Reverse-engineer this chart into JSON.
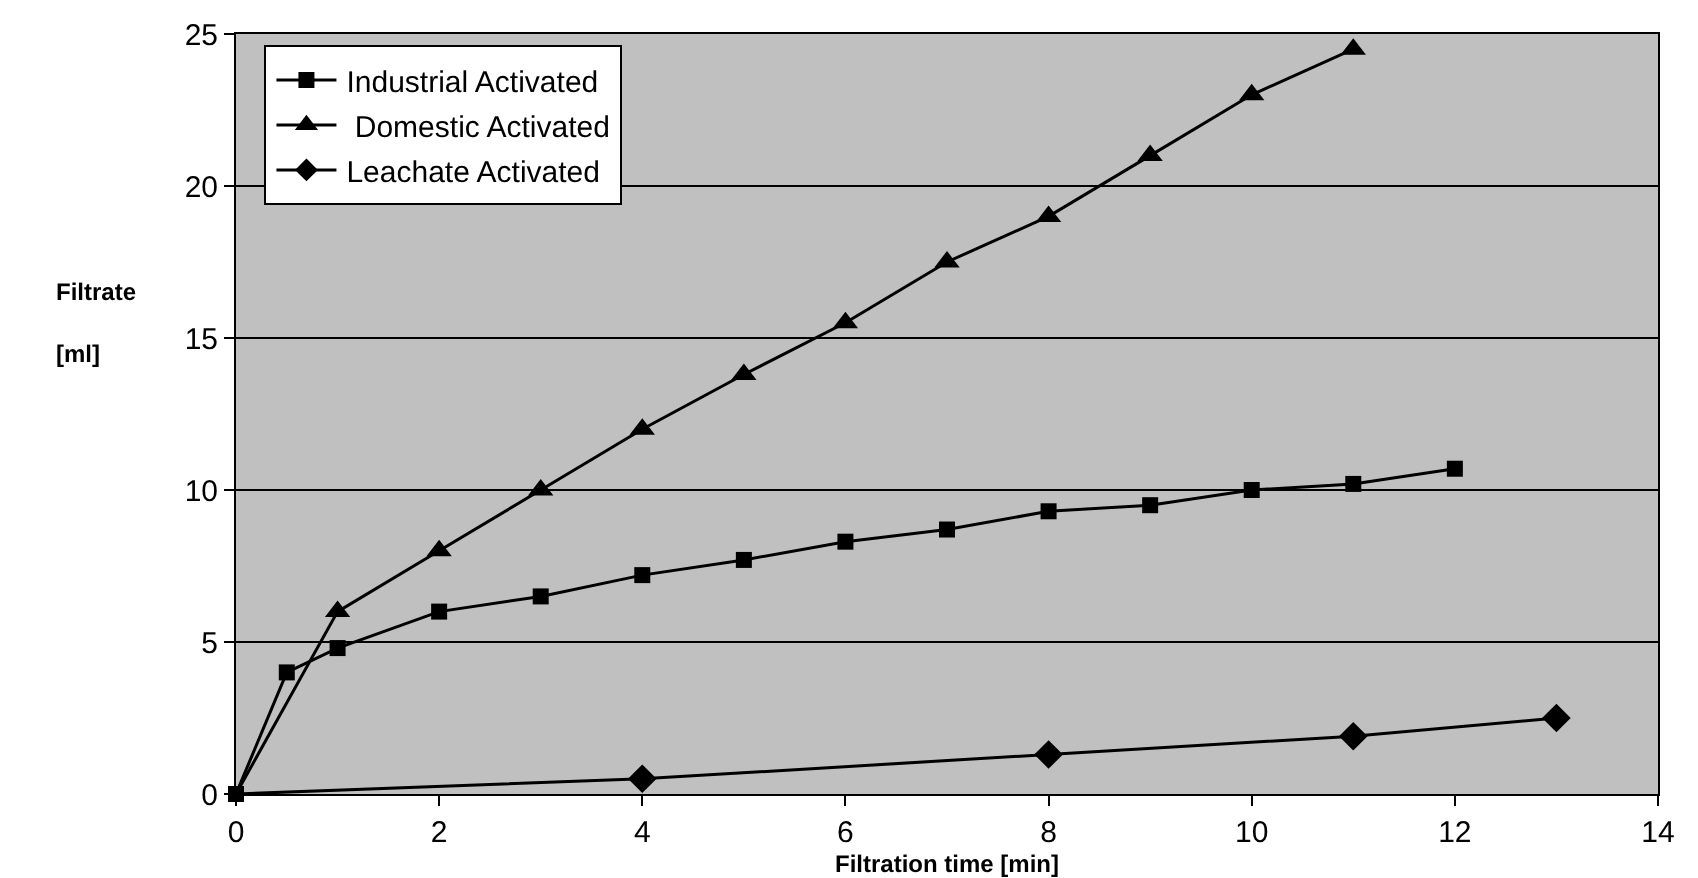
{
  "chart_data": {
    "type": "line",
    "xlabel": "Filtration time [min]",
    "ylabel": "Filtrate\n[ml]",
    "xlim": [
      0,
      14
    ],
    "xticks": [
      0,
      2,
      4,
      6,
      8,
      10,
      12,
      14
    ],
    "ylim": [
      0,
      25
    ],
    "yticks": [
      0,
      5,
      10,
      15,
      20,
      25
    ],
    "grid": "y",
    "legend": "top left",
    "line_style": "solid",
    "series": [
      {
        "name": "Industrial Activated",
        "color": "#000000",
        "marker": "square",
        "x": [
          0,
          0.5,
          1,
          2,
          3,
          4,
          5,
          6,
          7,
          8,
          9,
          10,
          11,
          12
        ],
        "values": [
          0,
          4,
          4.8,
          6,
          6.5,
          7.2,
          7.7,
          8.3,
          8.7,
          9.3,
          9.5,
          10,
          10.2,
          10.7
        ]
      },
      {
        "name": " Domestic Activated",
        "color": "#000000",
        "marker": "triangle",
        "x": [
          0,
          1,
          2,
          3,
          4,
          5,
          6,
          7,
          8,
          9,
          10,
          11
        ],
        "values": [
          0,
          6,
          8,
          10,
          12,
          13.8,
          15.5,
          17.5,
          19,
          21,
          23,
          24.5
        ]
      },
      {
        "name": "Leachate Activated",
        "color": "#000000",
        "marker": "diamond",
        "x": [
          0,
          4,
          8,
          11,
          13
        ],
        "values": [
          0,
          0.5,
          1.3,
          1.9,
          2.5
        ]
      }
    ]
  }
}
